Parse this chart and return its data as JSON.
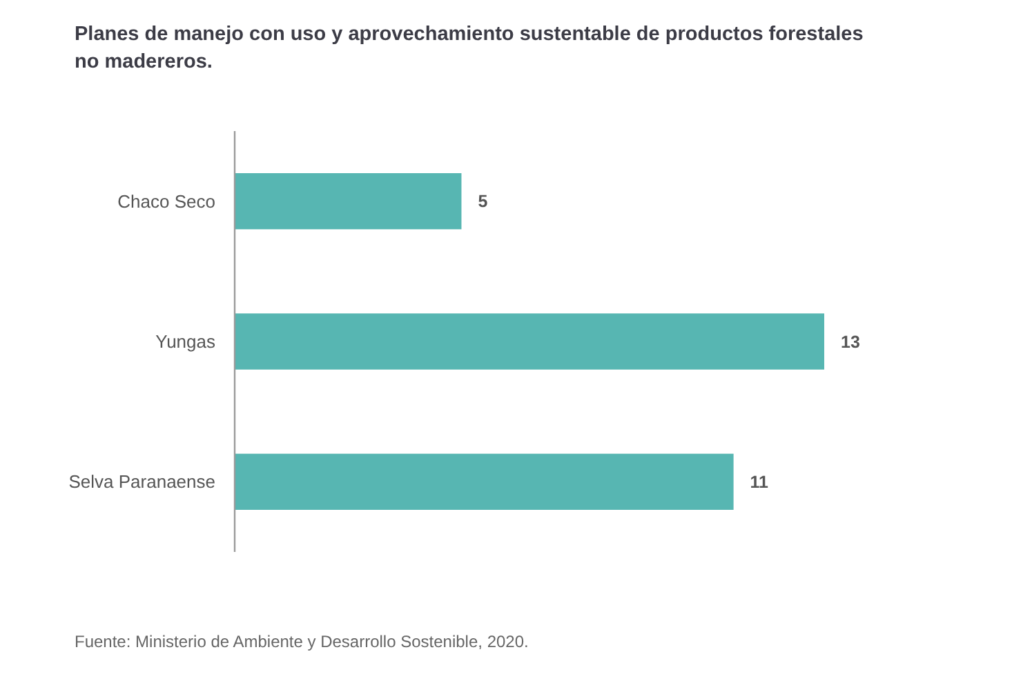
{
  "chart_data": {
    "type": "bar",
    "orientation": "horizontal",
    "title": "Planes de manejo con uso y aprovechamiento sustentable de productos forestales no madereros.",
    "categories": [
      "Chaco Seco",
      "Yungas",
      "Selva Paranaense"
    ],
    "values": [
      5,
      13,
      11
    ],
    "color": "#57b6b2",
    "data_labels": true,
    "annotations": [
      "Fuente: Ministerio de Ambiente y Desarrollo Sostenible, 2020."
    ]
  }
}
